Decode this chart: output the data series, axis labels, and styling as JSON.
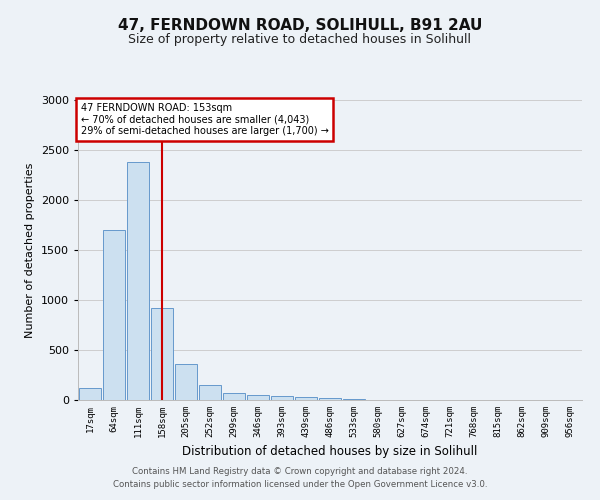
{
  "title1": "47, FERNDOWN ROAD, SOLIHULL, B91 2AU",
  "title2": "Size of property relative to detached houses in Solihull",
  "xlabel": "Distribution of detached houses by size in Solihull",
  "ylabel": "Number of detached properties",
  "categories": [
    "17sqm",
    "64sqm",
    "111sqm",
    "158sqm",
    "205sqm",
    "252sqm",
    "299sqm",
    "346sqm",
    "393sqm",
    "439sqm",
    "486sqm",
    "533sqm",
    "580sqm",
    "627sqm",
    "674sqm",
    "721sqm",
    "768sqm",
    "815sqm",
    "862sqm",
    "909sqm",
    "956sqm"
  ],
  "values": [
    120,
    1700,
    2380,
    920,
    360,
    155,
    75,
    50,
    40,
    30,
    20,
    10,
    5,
    0,
    0,
    0,
    0,
    0,
    0,
    0,
    0
  ],
  "bar_color": "#cce0f0",
  "bar_edge_color": "#6699cc",
  "bar_edge_width": 0.7,
  "red_line_index": 3.0,
  "ylim": [
    0,
    3000
  ],
  "yticks": [
    0,
    500,
    1000,
    1500,
    2000,
    2500,
    3000
  ],
  "annotation_title": "47 FERNDOWN ROAD: 153sqm",
  "annotation_line1": "← 70% of detached houses are smaller (4,043)",
  "annotation_line2": "29% of semi-detached houses are larger (1,700) →",
  "annotation_box_color": "#cc0000",
  "footer1": "Contains HM Land Registry data © Crown copyright and database right 2024.",
  "footer2": "Contains public sector information licensed under the Open Government Licence v3.0.",
  "bg_color": "#edf2f7",
  "plot_bg_color": "#edf2f7",
  "grid_color": "#c8c8c8"
}
